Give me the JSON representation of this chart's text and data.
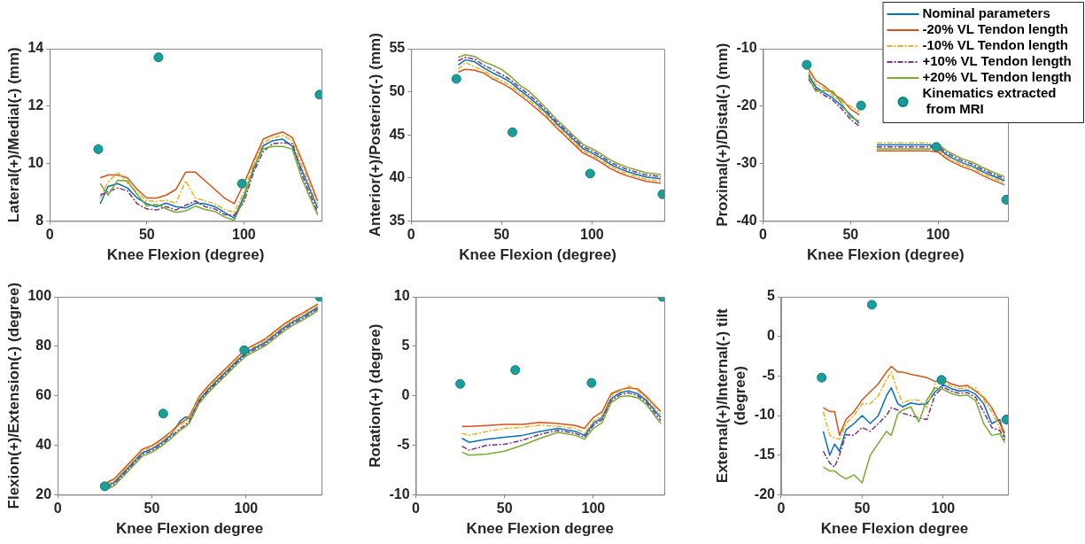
{
  "chart_data": [
    {
      "type": "line",
      "xlabel": "Knee Flexion (degree)",
      "ylabel": "Lateral(+)/Medial(-) (mm)",
      "xlim": [
        0,
        140
      ],
      "xticks": [
        0,
        50,
        100
      ],
      "ylim": [
        8,
        14
      ],
      "yticks": [
        8,
        10,
        12,
        14
      ],
      "legend": false,
      "x": [
        26,
        30,
        35,
        40,
        45,
        50,
        55,
        60,
        65,
        70,
        75,
        80,
        85,
        90,
        95,
        100,
        105,
        110,
        115,
        120,
        125,
        130,
        138
      ],
      "series": [
        {
          "color": "#0072bd",
          "values": [
            8.6,
            9.2,
            9.3,
            9.15,
            8.8,
            8.6,
            8.5,
            8.62,
            8.5,
            8.45,
            8.62,
            8.6,
            8.5,
            8.3,
            8.1,
            8.86,
            9.8,
            10.62,
            10.8,
            10.85,
            10.6,
            9.75,
            8.45
          ]
        },
        {
          "color": "#d95319",
          "values": [
            9.5,
            9.6,
            9.6,
            9.5,
            9.1,
            8.8,
            8.8,
            8.9,
            9.1,
            9.7,
            9.7,
            9.4,
            9.1,
            8.8,
            8.6,
            9.3,
            10.1,
            10.85,
            11.0,
            11.1,
            10.9,
            10.1,
            8.7
          ]
        },
        {
          "color": "#edb120",
          "line_style": "dashed",
          "values": [
            8.8,
            9.35,
            9.7,
            9.32,
            9.0,
            8.7,
            8.68,
            8.72,
            8.62,
            9.4,
            8.8,
            8.7,
            8.6,
            8.4,
            8.3,
            9.0,
            9.98,
            10.72,
            10.9,
            10.98,
            10.8,
            9.92,
            8.56
          ]
        },
        {
          "color": "#7e2f8e",
          "line_style": "dashed",
          "values": [
            8.9,
            9.02,
            9.15,
            9.05,
            8.6,
            8.42,
            8.38,
            8.5,
            8.38,
            8.55,
            8.7,
            8.5,
            8.42,
            8.22,
            8.2,
            8.65,
            9.7,
            10.42,
            10.7,
            10.72,
            10.7,
            9.6,
            8.3
          ]
        },
        {
          "color": "#77ac30",
          "values": [
            9.3,
            8.9,
            9.42,
            9.4,
            8.92,
            8.52,
            8.58,
            8.42,
            8.3,
            8.35,
            8.52,
            8.4,
            8.33,
            8.14,
            8.02,
            8.76,
            9.88,
            10.52,
            10.6,
            10.6,
            10.5,
            9.45,
            8.2
          ]
        },
        {
          "type": "scatter",
          "marker": "circle",
          "color": "#1a9e9a",
          "x": [
            25,
            56,
            99,
            139
          ],
          "values": [
            10.5,
            13.7,
            9.3,
            12.4
          ]
        }
      ]
    },
    {
      "type": "line",
      "xlabel": "Knee Flexion (degree)",
      "ylabel": "Anterior(+)/Posterior(-) (mm)",
      "xlim": [
        0,
        140
      ],
      "xticks": [
        0,
        50,
        100
      ],
      "ylim": [
        35,
        55
      ],
      "yticks": [
        35,
        40,
        45,
        50,
        55
      ],
      "legend": false,
      "x": [
        26,
        30,
        35,
        40,
        45,
        50,
        55,
        60,
        65,
        70,
        75,
        80,
        85,
        90,
        95,
        100,
        105,
        110,
        115,
        120,
        125,
        130,
        138
      ],
      "series": [
        {
          "color": "#0072bd",
          "values": [
            53.1,
            53.7,
            53.5,
            52.8,
            52.2,
            51.7,
            51.1,
            50.2,
            49.4,
            48.5,
            47.5,
            46.4,
            45.4,
            44.4,
            43.4,
            42.9,
            42.3,
            41.6,
            41.1,
            40.7,
            40.4,
            40.1,
            39.9
          ]
        },
        {
          "color": "#d95319",
          "values": [
            52.3,
            52.6,
            52.5,
            52.2,
            51.5,
            51.0,
            50.4,
            49.6,
            48.8,
            47.9,
            47.0,
            45.9,
            44.9,
            43.9,
            42.9,
            42.4,
            41.8,
            41.1,
            40.6,
            40.2,
            39.9,
            39.6,
            39.4
          ]
        },
        {
          "color": "#edb120",
          "line_style": "dashed",
          "values": [
            52.6,
            53.4,
            52.9,
            52.5,
            51.8,
            51.3,
            50.7,
            49.9,
            49.1,
            48.2,
            47.25,
            46.15,
            45.15,
            44.15,
            43.15,
            42.65,
            42.05,
            41.35,
            40.85,
            40.45,
            40.15,
            39.85,
            39.65
          ]
        },
        {
          "color": "#7e2f8e",
          "line_style": "dashed",
          "values": [
            53.6,
            54.0,
            53.8,
            53.1,
            52.6,
            52.0,
            51.4,
            50.5,
            49.7,
            48.8,
            47.75,
            46.65,
            45.65,
            44.65,
            43.65,
            43.15,
            42.55,
            41.85,
            41.35,
            40.95,
            40.65,
            40.35,
            40.15
          ]
        },
        {
          "color": "#77ac30",
          "values": [
            54.0,
            54.3,
            54.1,
            53.5,
            53.1,
            52.6,
            51.8,
            50.8,
            50.1,
            49.1,
            48.0,
            46.9,
            45.9,
            44.9,
            43.9,
            43.4,
            42.8,
            42.1,
            41.6,
            41.2,
            40.9,
            40.6,
            40.4
          ]
        },
        {
          "type": "scatter",
          "marker": "circle",
          "color": "#1a9e9a",
          "x": [
            25,
            56,
            99,
            139
          ],
          "values": [
            51.5,
            45.3,
            40.5,
            38.1
          ]
        }
      ]
    },
    {
      "type": "line",
      "xlabel": "Knee Flexion (degree)",
      "ylabel": "Proximal(+)/Distal(-) (mm)",
      "xlim": [
        0,
        140
      ],
      "xticks": [
        0,
        50,
        100
      ],
      "ylim": [
        -40,
        -10
      ],
      "yticks": [
        -40,
        -30,
        -20,
        -10
      ],
      "legend": "top right",
      "x": [
        26,
        30,
        35,
        40,
        45,
        50,
        55,
        60,
        65,
        70,
        75,
        80,
        85,
        90,
        95,
        100,
        105,
        110,
        115,
        120,
        125,
        130,
        138
      ],
      "series": [
        {
          "name": "Nominal parameters",
          "color": "#0072bd",
          "values": [
            -14.5,
            -16.6,
            -17.7,
            -18.6,
            -20.0,
            -21.5,
            -23.0,
            null,
            -26.75,
            -26.75,
            -26.75,
            -26.75,
            -26.75,
            -26.75,
            -26.75,
            -27.3,
            -28.5,
            -29.3,
            -30.0,
            -30.5,
            -31.3,
            -32.0,
            -33.0
          ]
        },
        {
          "name": "-20% VL Tendon length",
          "color": "#d95319",
          "values": [
            -13.5,
            -15.5,
            -16.5,
            -17.8,
            -18.8,
            -20.5,
            -21.5,
            null,
            -27.8,
            -27.8,
            -27.8,
            -27.8,
            -27.8,
            -27.8,
            -27.8,
            -28.0,
            -29.2,
            -30.0,
            -30.7,
            -31.2,
            -32.0,
            -32.7,
            -33.7
          ]
        },
        {
          "name": "-10% VL Tendon length",
          "color": "#edb120",
          "line_style": "dashed",
          "values": [
            -14.0,
            -16.2,
            -16.9,
            -18.2,
            -19.2,
            -20.0,
            -21.0,
            null,
            -26.4,
            -26.4,
            -26.4,
            -26.4,
            -26.4,
            -26.4,
            -26.4,
            -27.65,
            -28.85,
            -29.65,
            -30.35,
            -30.85,
            -31.65,
            -32.35,
            -33.35
          ]
        },
        {
          "name": "+10% VL Tendon length",
          "color": "#7e2f8e",
          "line_style": "dashed",
          "values": [
            -15.3,
            -17.0,
            -18.1,
            -19.0,
            -20.5,
            -22.3,
            -23.5,
            null,
            -27.1,
            -27.1,
            -27.1,
            -27.1,
            -27.1,
            -27.1,
            -27.1,
            -26.95,
            -28.15,
            -28.95,
            -29.65,
            -30.15,
            -30.95,
            -31.65,
            -32.65
          ]
        },
        {
          "name": "+20% VL Tendon length",
          "color": "#77ac30",
          "values": [
            -14.9,
            -17.4,
            -17.3,
            -17.4,
            -19.6,
            -21.9,
            -22.6,
            null,
            -27.45,
            -27.45,
            -27.45,
            -27.45,
            -27.45,
            -27.45,
            -27.45,
            -26.6,
            -27.8,
            -28.6,
            -29.3,
            -29.8,
            -30.6,
            -31.3,
            -32.3
          ]
        },
        {
          "name": "Kinematics extracted from MRI",
          "type": "scatter",
          "marker": "circle",
          "color": "#1a9e9a",
          "x": [
            25,
            56,
            99,
            139
          ],
          "values": [
            -12.8,
            -19.9,
            -27.1,
            -36.3
          ]
        }
      ]
    },
    {
      "type": "line",
      "xlabel": "Knee Flexion degree",
      "ylabel": "Flexion(+)/Extension(-) (degree)",
      "xlim": [
        0,
        140
      ],
      "xticks": [
        0,
        50,
        100
      ],
      "ylim": [
        20,
        100
      ],
      "yticks": [
        20,
        40,
        60,
        80,
        100
      ],
      "legend": false,
      "x": [
        26,
        30,
        35,
        40,
        45,
        50,
        55,
        60,
        65,
        68,
        70,
        75,
        80,
        85,
        90,
        95,
        100,
        105,
        110,
        115,
        120,
        125,
        130,
        138
      ],
      "series": [
        {
          "color": "#0072bd",
          "values": [
            23.5,
            25,
            29,
            33,
            37,
            38.5,
            41,
            44,
            49.8,
            51.5,
            50.5,
            58.2,
            62.7,
            66.5,
            70.2,
            74,
            77.5,
            79.5,
            81.5,
            84.5,
            87.5,
            90,
            92,
            95.7
          ]
        },
        {
          "color": "#d95319",
          "values": [
            24.9,
            26.4,
            30.4,
            34.4,
            38.4,
            39.9,
            42.4,
            45.4,
            48.9,
            50.4,
            51.9,
            59.6,
            64.1,
            67.9,
            71.6,
            75.4,
            78.9,
            80.9,
            82.9,
            85.9,
            88.9,
            91.4,
            93.4,
            97.1
          ]
        },
        {
          "color": "#edb120",
          "line_style": "dashed",
          "values": [
            24.2,
            25.7,
            29.7,
            33.7,
            37.7,
            39.2,
            41.7,
            44.7,
            48.2,
            49.7,
            51.2,
            58.9,
            63.4,
            67.2,
            70.9,
            74.7,
            78.2,
            80.2,
            82.2,
            85.2,
            88.2,
            90.7,
            92.7,
            96.4
          ]
        },
        {
          "color": "#7e2f8e",
          "line_style": "dashed",
          "values": [
            22.8,
            24.3,
            28.3,
            32.3,
            36.3,
            37.8,
            40.3,
            43.3,
            46.8,
            48.3,
            49.8,
            57.5,
            62.0,
            65.8,
            69.5,
            73.3,
            76.8,
            78.8,
            80.8,
            83.8,
            86.8,
            89.3,
            91.3,
            95.0
          ]
        },
        {
          "color": "#77ac30",
          "values": [
            22.1,
            23.6,
            27.6,
            31.6,
            35.6,
            37.1,
            39.6,
            42.6,
            46.1,
            47.6,
            49.1,
            56.8,
            61.3,
            65.1,
            68.8,
            72.6,
            76.1,
            78.1,
            80.1,
            83.1,
            86.1,
            88.6,
            90.6,
            94.3
          ]
        },
        {
          "type": "scatter",
          "marker": "circle",
          "color": "#1a9e9a",
          "x": [
            25,
            56,
            99,
            139
          ],
          "values": [
            23.4,
            52.8,
            78.4,
            100
          ]
        }
      ]
    },
    {
      "type": "line",
      "xlabel": "Knee Flexion degree",
      "ylabel": "Rotation(+) (degree)",
      "xlim": [
        0,
        140
      ],
      "xticks": [
        0,
        50,
        100
      ],
      "ylim": [
        -10,
        10
      ],
      "yticks": [
        -10,
        -5,
        0,
        5,
        10
      ],
      "legend": false,
      "x": [
        26,
        30,
        40,
        50,
        60,
        70,
        80,
        90,
        95,
        100,
        105,
        110,
        115,
        120,
        125,
        130,
        138
      ],
      "series": [
        {
          "color": "#0072bd",
          "values": [
            -4.3,
            -4.7,
            -4.4,
            -4.2,
            -4.0,
            -3.6,
            -3.3,
            -3.6,
            -4.0,
            -2.8,
            -2.2,
            -0.3,
            0.3,
            0.5,
            0.2,
            -0.5,
            -2.2
          ]
        },
        {
          "color": "#d95319",
          "values": [
            -3.1,
            -3.1,
            -3.0,
            -2.9,
            -2.9,
            -2.7,
            -2.8,
            -3.0,
            -3.3,
            -2.2,
            -1.6,
            0.2,
            0.6,
            0.8,
            0.7,
            -0.1,
            -1.6
          ]
        },
        {
          "color": "#edb120",
          "line_style": "dashed",
          "values": [
            -3.8,
            -4.0,
            -3.6,
            -3.3,
            -3.2,
            -2.95,
            -3.1,
            -3.3,
            -3.8,
            -2.6,
            -2.0,
            0.0,
            0.5,
            1.0,
            0.5,
            -0.3,
            -1.9
          ]
        },
        {
          "color": "#7e2f8e",
          "line_style": "dashed",
          "values": [
            -5.1,
            -5.5,
            -5.0,
            -4.9,
            -4.5,
            -3.9,
            -3.5,
            -3.8,
            -4.2,
            -3.0,
            -2.4,
            -0.5,
            0.1,
            0.3,
            0.0,
            -0.7,
            -2.5
          ]
        },
        {
          "color": "#77ac30",
          "values": [
            -5.7,
            -6.0,
            -5.9,
            -5.6,
            -5.0,
            -4.3,
            -3.7,
            -4.0,
            -4.4,
            -3.3,
            -2.7,
            -0.7,
            -0.1,
            0.0,
            -0.2,
            -0.9,
            -2.8
          ]
        },
        {
          "type": "scatter",
          "marker": "circle",
          "color": "#1a9e9a",
          "x": [
            25,
            56,
            99,
            139
          ],
          "values": [
            1.2,
            2.6,
            1.3,
            10
          ]
        }
      ]
    },
    {
      "type": "line",
      "xlabel": "Knee Flexion degree",
      "ylabel": "External(+)/Internal(-) tilt\n(degree)",
      "xlim": [
        0,
        140
      ],
      "xticks": [
        0,
        50,
        100
      ],
      "ylim": [
        -20,
        5
      ],
      "yticks": [
        -20,
        -15,
        -10,
        -5,
        0,
        5
      ],
      "legend": false,
      "x": [
        26,
        30,
        33,
        36,
        40,
        45,
        50,
        55,
        60,
        65,
        68,
        72,
        75,
        80,
        85,
        90,
        95,
        100,
        105,
        110,
        115,
        120,
        125,
        130,
        135,
        138
      ],
      "series": [
        {
          "color": "#0072bd",
          "values": [
            -12,
            -15,
            -13.6,
            -14.5,
            -11.8,
            -11,
            -10,
            -11,
            -10,
            -7.5,
            -6.5,
            -8.5,
            -8.9,
            -8.4,
            -8.6,
            -8.5,
            -7,
            -6.1,
            -6.6,
            -6.9,
            -6.8,
            -7.3,
            -8.5,
            -11,
            -10.5,
            -12.8
          ]
        },
        {
          "color": "#d95319",
          "values": [
            -9,
            -9.5,
            -9.5,
            -12.5,
            -10.5,
            -9.5,
            -8,
            -7,
            -6,
            -4.5,
            -3.8,
            -4.5,
            -4.5,
            -4.8,
            -5,
            -5.2,
            -5.7,
            -5.5,
            -6.0,
            -6.3,
            -6.2,
            -6.9,
            -7.7,
            -9,
            -11,
            -12.2
          ]
        },
        {
          "color": "#edb120",
          "line_style": "dashed",
          "values": [
            -9.5,
            -12.5,
            -12.8,
            -13,
            -11,
            -10,
            -8.5,
            -8.5,
            -7.5,
            -5.5,
            -4.5,
            -7,
            -8.4,
            -8,
            -8.1,
            -9,
            -6,
            -5.8,
            -6.3,
            -6.6,
            -6.5,
            -6.5,
            -8,
            -9.5,
            -11.6,
            -12.5
          ]
        },
        {
          "color": "#7e2f8e",
          "line_style": "dashed",
          "values": [
            -14.5,
            -16,
            -16.5,
            -15,
            -12.4,
            -12.5,
            -11.5,
            -12,
            -11,
            -10,
            -9,
            -9.3,
            -9.7,
            -10,
            -10.3,
            -10.5,
            -7.4,
            -6.4,
            -6.9,
            -7.2,
            -7.1,
            -7.7,
            -9.5,
            -11.5,
            -11.9,
            -13.1
          ]
        },
        {
          "color": "#77ac30",
          "values": [
            -16.5,
            -17,
            -17,
            -17.5,
            -18,
            -17.5,
            -18.5,
            -15,
            -13.5,
            -12,
            -12.5,
            -9.8,
            -9.3,
            -8.9,
            -10.8,
            -8,
            -6.5,
            -6.7,
            -7.2,
            -7.5,
            -7.4,
            -8.1,
            -11,
            -12.5,
            -12.3,
            -13.4
          ]
        },
        {
          "type": "scatter",
          "marker": "circle",
          "color": "#1a9e9a",
          "x": [
            25,
            56,
            99,
            139
          ],
          "values": [
            -5.2,
            4.0,
            -5.5,
            -10.5
          ]
        }
      ]
    }
  ]
}
